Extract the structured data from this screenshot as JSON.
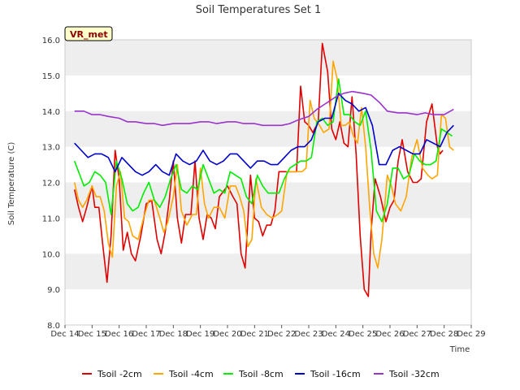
{
  "chart_data": {
    "type": "line",
    "title": "Soil Temperatures Set 1",
    "xlabel": "Time",
    "ylabel": "Soil Temperature (C)",
    "ylim": [
      8.0,
      16.0
    ],
    "yticks": [
      "8.0",
      "9.0",
      "10.0",
      "11.0",
      "12.0",
      "13.0",
      "14.0",
      "15.0",
      "16.0"
    ],
    "xlim": [
      14,
      29
    ],
    "xticks": [
      "Dec 14",
      "Dec 15",
      "Dec 16",
      "Dec 17",
      "Dec 18",
      "Dec 19",
      "Dec 20",
      "Dec 21",
      "Dec 22",
      "Dec 23",
      "Dec 24",
      "Dec 25",
      "Dec 26",
      "Dec 27",
      "Dec 28",
      "Dec 29"
    ],
    "grid": "horizontal bands",
    "badge": "VR_met",
    "legend_position": "bottom",
    "series": [
      {
        "name": "Tsoil -2cm",
        "color": "#e00000",
        "x": [
          14.35,
          14.5,
          14.65,
          14.8,
          15.0,
          15.1,
          15.25,
          15.4,
          15.55,
          15.7,
          15.85,
          16.0,
          16.15,
          16.3,
          16.45,
          16.6,
          16.8,
          17.0,
          17.2,
          17.4,
          17.55,
          17.7,
          17.85,
          18.0,
          18.15,
          18.3,
          18.45,
          18.65,
          18.8,
          18.95,
          19.1,
          19.25,
          19.4,
          19.55,
          19.7,
          20.0,
          20.2,
          20.35,
          20.5,
          20.65,
          20.85,
          21.0,
          21.15,
          21.3,
          21.45,
          21.6,
          21.75,
          21.9,
          22.05,
          22.2,
          22.35,
          22.55,
          22.7,
          22.85,
          23.0,
          23.15,
          23.35,
          23.5,
          23.7,
          23.85,
          24.0,
          24.15,
          24.3,
          24.45,
          24.6,
          24.75,
          24.9,
          25.05,
          25.2,
          25.3,
          25.45,
          25.65,
          25.85,
          26.0,
          26.15,
          26.3,
          26.45,
          26.65,
          26.85,
          27.0,
          27.15,
          27.35,
          27.55,
          27.75,
          27.85,
          27.95,
          28.1,
          28.25,
          28.35
        ],
        "values": [
          11.8,
          11.3,
          10.9,
          11.3,
          11.9,
          11.3,
          11.3,
          10.2,
          9.2,
          10.5,
          12.9,
          12.1,
          10.1,
          10.6,
          10.0,
          9.8,
          10.5,
          11.4,
          11.5,
          10.4,
          10.0,
          10.6,
          11.5,
          12.6,
          11.0,
          10.3,
          11.1,
          11.1,
          12.6,
          11.0,
          10.4,
          11.1,
          11.0,
          10.7,
          11.6,
          11.9,
          11.6,
          11.4,
          10.0,
          9.6,
          12.2,
          11.0,
          10.9,
          10.5,
          10.8,
          10.8,
          11.2,
          12.3,
          12.3,
          12.3,
          12.3,
          12.3,
          14.7,
          13.7,
          13.6,
          13.4,
          13.7,
          15.9,
          15.1,
          13.5,
          13.2,
          13.7,
          13.1,
          13.0,
          14.4,
          12.8,
          10.5,
          9.0,
          8.8,
          10.6,
          12.1,
          11.6,
          10.9,
          11.3,
          11.5,
          12.6,
          13.2,
          12.3,
          12.0,
          12.0,
          12.1,
          13.7,
          14.2,
          13.0,
          12.8,
          12.9,
          null,
          null,
          null
        ]
      },
      {
        "name": "Tsoil -4cm",
        "color": "#ffa500",
        "x": [
          14.35,
          14.5,
          14.65,
          14.8,
          15.0,
          15.15,
          15.3,
          15.45,
          15.6,
          15.75,
          15.9,
          16.05,
          16.2,
          16.35,
          16.5,
          16.7,
          16.9,
          17.1,
          17.3,
          17.5,
          17.65,
          17.8,
          18.0,
          18.15,
          18.3,
          18.5,
          18.7,
          18.85,
          19.0,
          19.15,
          19.3,
          19.5,
          19.7,
          19.9,
          20.1,
          20.3,
          20.45,
          20.6,
          20.75,
          20.9,
          21.05,
          21.25,
          21.45,
          21.65,
          21.85,
          22.0,
          22.2,
          22.4,
          22.6,
          22.75,
          22.9,
          23.05,
          23.2,
          23.4,
          23.55,
          23.75,
          23.9,
          24.05,
          24.2,
          24.35,
          24.5,
          24.65,
          24.8,
          24.95,
          25.1,
          25.25,
          25.4,
          25.55,
          25.7,
          25.9,
          26.05,
          26.2,
          26.4,
          26.6,
          26.8,
          27.0,
          27.2,
          27.4,
          27.55,
          27.75,
          27.9,
          28.05,
          28.2,
          28.35
        ],
        "values": [
          12.0,
          11.5,
          11.3,
          11.5,
          11.9,
          11.6,
          11.6,
          11.2,
          10.3,
          9.9,
          11.9,
          12.3,
          11.0,
          10.9,
          10.5,
          10.4,
          11.0,
          11.5,
          11.5,
          11.0,
          10.6,
          10.9,
          11.6,
          12.5,
          11.2,
          10.8,
          11.1,
          11.1,
          12.4,
          11.4,
          11.0,
          11.3,
          11.3,
          11.0,
          11.9,
          11.9,
          11.6,
          11.2,
          10.2,
          10.4,
          12.1,
          11.3,
          11.1,
          11.0,
          11.1,
          11.2,
          12.3,
          12.3,
          12.3,
          12.3,
          12.4,
          14.3,
          13.8,
          13.6,
          13.4,
          13.5,
          15.4,
          14.9,
          13.6,
          13.6,
          13.7,
          13.3,
          13.1,
          14.1,
          13.0,
          11.3,
          10.0,
          9.6,
          10.4,
          12.2,
          11.9,
          11.4,
          11.2,
          11.6,
          12.7,
          13.2,
          12.4,
          12.2,
          12.1,
          12.2,
          13.9,
          13.8,
          13.0,
          12.9
        ],
        "note": "last point removed"
      },
      {
        "name": "Tsoil -8cm",
        "color": "#00ee00",
        "x": [
          14.35,
          14.5,
          14.7,
          14.9,
          15.1,
          15.3,
          15.5,
          15.7,
          15.9,
          16.1,
          16.3,
          16.5,
          16.7,
          16.9,
          17.1,
          17.3,
          17.5,
          17.7,
          17.9,
          18.1,
          18.3,
          18.5,
          18.7,
          18.9,
          19.1,
          19.3,
          19.5,
          19.7,
          19.9,
          20.1,
          20.3,
          20.5,
          20.7,
          20.9,
          21.1,
          21.3,
          21.5,
          21.7,
          21.9,
          22.1,
          22.3,
          22.5,
          22.7,
          22.9,
          23.1,
          23.3,
          23.5,
          23.7,
          23.9,
          24.1,
          24.3,
          24.5,
          24.7,
          24.9,
          25.1,
          25.3,
          25.5,
          25.7,
          25.9,
          26.1,
          26.3,
          26.5,
          26.7,
          26.9,
          27.1,
          27.3,
          27.5,
          27.7,
          27.9,
          28.1,
          28.3
        ],
        "values": [
          12.6,
          12.3,
          11.9,
          12.0,
          12.3,
          12.2,
          12.0,
          11.1,
          12.6,
          12.1,
          11.4,
          11.2,
          11.3,
          11.7,
          12.0,
          11.5,
          11.3,
          11.6,
          12.1,
          12.5,
          11.8,
          11.7,
          11.9,
          11.8,
          12.5,
          12.1,
          11.7,
          11.8,
          11.7,
          12.3,
          12.2,
          12.1,
          11.6,
          11.4,
          12.2,
          11.9,
          11.7,
          11.7,
          11.7,
          12.1,
          12.4,
          12.5,
          12.6,
          12.6,
          12.7,
          13.7,
          13.8,
          13.6,
          13.7,
          14.9,
          13.9,
          13.9,
          13.7,
          13.6,
          14.0,
          12.9,
          11.2,
          10.9,
          11.4,
          12.4,
          12.4,
          12.1,
          12.2,
          12.8,
          12.6,
          12.5,
          12.5,
          12.6,
          13.5,
          13.4,
          13.3
        ]
      },
      {
        "name": "Tsoil -16cm",
        "color": "#0000cc",
        "x": [
          14.35,
          14.6,
          14.85,
          15.1,
          15.35,
          15.6,
          15.85,
          16.1,
          16.35,
          16.6,
          16.85,
          17.1,
          17.35,
          17.6,
          17.85,
          18.1,
          18.35,
          18.6,
          18.85,
          19.1,
          19.35,
          19.6,
          19.85,
          20.1,
          20.35,
          20.6,
          20.85,
          21.1,
          21.35,
          21.6,
          21.85,
          22.1,
          22.35,
          22.6,
          22.85,
          23.1,
          23.35,
          23.6,
          23.85,
          24.1,
          24.35,
          24.6,
          24.85,
          25.1,
          25.35,
          25.6,
          25.85,
          26.1,
          26.35,
          26.6,
          26.85,
          27.1,
          27.35,
          27.6,
          27.85,
          28.1,
          28.35
        ],
        "values": [
          13.1,
          12.9,
          12.7,
          12.8,
          12.8,
          12.7,
          12.3,
          12.7,
          12.5,
          12.3,
          12.2,
          12.3,
          12.5,
          12.3,
          12.2,
          12.8,
          12.6,
          12.5,
          12.6,
          12.9,
          12.6,
          12.5,
          12.6,
          12.8,
          12.8,
          12.6,
          12.4,
          12.6,
          12.6,
          12.5,
          12.5,
          12.7,
          12.9,
          13.0,
          13.0,
          13.2,
          13.7,
          13.8,
          13.8,
          14.5,
          14.3,
          14.2,
          14.0,
          14.1,
          13.6,
          12.5,
          12.5,
          12.9,
          13.0,
          12.9,
          12.8,
          12.8,
          13.2,
          13.1,
          13.0,
          13.4,
          13.6
        ]
      },
      {
        "name": "Tsoil -32cm",
        "color": "#9933cc",
        "x": [
          14.35,
          14.7,
          15.0,
          15.3,
          15.6,
          16.0,
          16.3,
          16.6,
          17.0,
          17.3,
          17.6,
          18.0,
          18.3,
          18.6,
          19.0,
          19.3,
          19.6,
          20.0,
          20.3,
          20.6,
          21.0,
          21.3,
          21.6,
          22.0,
          22.3,
          22.6,
          23.0,
          23.3,
          23.6,
          24.0,
          24.3,
          24.6,
          25.0,
          25.3,
          25.6,
          25.9,
          26.3,
          26.6,
          27.0,
          27.3,
          27.6,
          28.0,
          28.35
        ],
        "values": [
          14.0,
          14.0,
          13.9,
          13.9,
          13.85,
          13.8,
          13.7,
          13.7,
          13.65,
          13.65,
          13.6,
          13.65,
          13.65,
          13.65,
          13.7,
          13.7,
          13.65,
          13.7,
          13.7,
          13.65,
          13.65,
          13.6,
          13.6,
          13.6,
          13.65,
          13.75,
          13.85,
          14.05,
          14.2,
          14.4,
          14.5,
          14.55,
          14.5,
          14.45,
          14.25,
          14.0,
          13.95,
          13.95,
          13.9,
          13.95,
          13.9,
          13.9,
          14.05
        ]
      }
    ]
  }
}
